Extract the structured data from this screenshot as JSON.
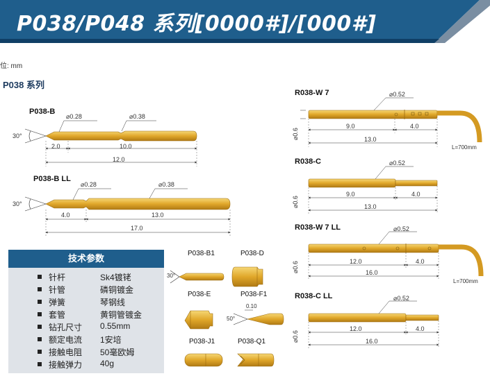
{
  "header": {
    "title": "P038/P048 系列[0000#]/[000#]"
  },
  "unit_label": "位: mm",
  "section_title": "P038 系列",
  "left_parts": {
    "p038b": {
      "label": "P038-B",
      "angle": "30°",
      "dia1": "⌀0.28",
      "dia2": "⌀0.38",
      "d1": "2.0",
      "d2": "10.0",
      "d3": "12.0"
    },
    "p038bll": {
      "label": "P038-B LL",
      "angle": "30°",
      "dia1": "⌀0.28",
      "dia2": "⌀0.38",
      "d1": "4.0",
      "d2": "13.0",
      "d3": "17.0"
    }
  },
  "right_parts": {
    "w7": {
      "label": "R038-W 7",
      "dia": "⌀0.52",
      "od": "⌀0.6",
      "d1": "9.0",
      "d2": "4.0",
      "d3": "13.0",
      "len": "L=700mm"
    },
    "c": {
      "label": "R038-C",
      "dia": "⌀0.52",
      "od": "⌀0.6",
      "d1": "9.0",
      "d2": "4.0",
      "d3": "13.0"
    },
    "w7ll": {
      "label": "R038-W 7 LL",
      "dia": "⌀0.52",
      "od": "⌀0.6",
      "d1": "12.0",
      "d2": "4.0",
      "d3": "16.0",
      "len": "L=700mm"
    },
    "cll": {
      "label": "R038-C LL",
      "dia": "⌀0.52",
      "od": "⌀0.6",
      "d1": "12.0",
      "d2": "4.0",
      "d3": "16.0"
    }
  },
  "tips": {
    "b1": "P038-B1",
    "d": "P038-D",
    "e": "P038-E",
    "f1": "P038-F1",
    "j1": "P038-J1",
    "q1": "P038-Q1",
    "b1_angle": "30°",
    "f1_angle": "50°",
    "f1_dim": "0.10"
  },
  "params": {
    "title": "技术参数",
    "rows": [
      {
        "k": "针杆",
        "v": "Sk4镀铑"
      },
      {
        "k": "针管",
        "v": "磷铜镀金"
      },
      {
        "k": "弹簧",
        "v": "琴钢线"
      },
      {
        "k": "套管",
        "v": "黄铜管镀金"
      },
      {
        "k": "钻孔尺寸",
        "v": "0.55mm"
      },
      {
        "k": "额定电流",
        "v": "1安培"
      },
      {
        "k": "接触电阻",
        "v": "50毫欧姆"
      },
      {
        "k": "接触弹力",
        "v": "40g"
      }
    ]
  },
  "colors": {
    "banner": "#1f5e8c",
    "banner_dark": "#0f3f66",
    "gold": "#e0b030",
    "gold_dark": "#a8791a"
  }
}
